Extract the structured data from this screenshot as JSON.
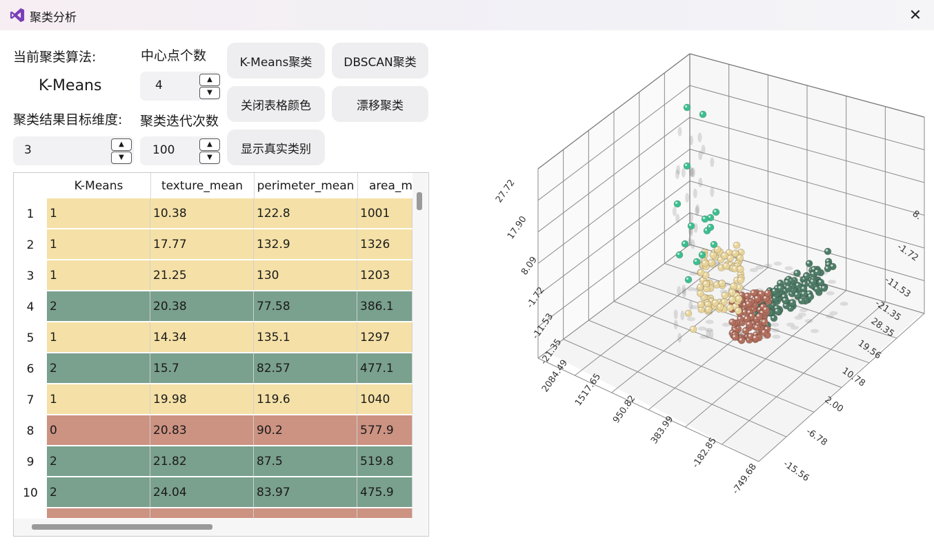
{
  "window": {
    "title": "聚类分析",
    "close_glyph": "✕"
  },
  "labels": {
    "current_algorithm": "当前聚类算法:",
    "algorithm_value": "K-Means",
    "centers": "中心点个数",
    "target_dims": "聚类结果目标维度:",
    "iterations": "聚类迭代次数"
  },
  "inputs": {
    "centers": "4",
    "dims": "3",
    "iterations": "100"
  },
  "buttons": {
    "kmeans": "K-Means聚类",
    "dbscan": "DBSCAN聚类",
    "close_colors": "关闭表格颜色",
    "meanshift": "漂移聚类",
    "show_true": "显示真实类别"
  },
  "table": {
    "columns": [
      "K-Means",
      "texture_mean",
      "perimeter_mean",
      "area_m"
    ],
    "rows": [
      {
        "n": "1",
        "cells": [
          "1",
          "10.38",
          "122.8",
          "1001"
        ],
        "color": "#f5e1a7"
      },
      {
        "n": "2",
        "cells": [
          "1",
          "17.77",
          "132.9",
          "1326"
        ],
        "color": "#f5e1a7"
      },
      {
        "n": "3",
        "cells": [
          "1",
          "21.25",
          "130",
          "1203"
        ],
        "color": "#f5e1a7"
      },
      {
        "n": "4",
        "cells": [
          "2",
          "20.38",
          "77.58",
          "386.1"
        ],
        "color": "#7aa08e"
      },
      {
        "n": "5",
        "cells": [
          "1",
          "14.34",
          "135.1",
          "1297"
        ],
        "color": "#f5e1a7"
      },
      {
        "n": "6",
        "cells": [
          "2",
          "15.7",
          "82.57",
          "477.1"
        ],
        "color": "#7aa08e"
      },
      {
        "n": "7",
        "cells": [
          "1",
          "19.98",
          "119.6",
          "1040"
        ],
        "color": "#f5e1a7"
      },
      {
        "n": "8",
        "cells": [
          "0",
          "20.83",
          "90.2",
          "577.9"
        ],
        "color": "#cc9282"
      },
      {
        "n": "9",
        "cells": [
          "2",
          "21.82",
          "87.5",
          "519.8"
        ],
        "color": "#7aa08e"
      },
      {
        "n": "10",
        "cells": [
          "2",
          "24.04",
          "83.97",
          "475.9"
        ],
        "color": "#7aa08e"
      }
    ],
    "partial_row_color": "#cc9282"
  },
  "plot": {
    "vertical_ticks": [
      "27.72",
      "17.90",
      "8.09",
      "-1.72",
      "-11.53",
      "-21.35"
    ],
    "left_floor_ticks": [
      "2084.49",
      "1517.65",
      "950.82",
      "383.99",
      "-182.85",
      "-749.68"
    ],
    "right_floor_ticks": [
      "28.35",
      "19.56",
      "10.78",
      "2.00",
      "-6.78",
      "-15.56"
    ],
    "right_wall_ticks": [
      "8.",
      "-1.72",
      "-11.53",
      "-21.35"
    ],
    "cluster_colors": {
      "teal": "#3dbf8f",
      "cream": "#e8d49a",
      "brick": "#b26f5e",
      "green": "#4f7d68"
    }
  }
}
